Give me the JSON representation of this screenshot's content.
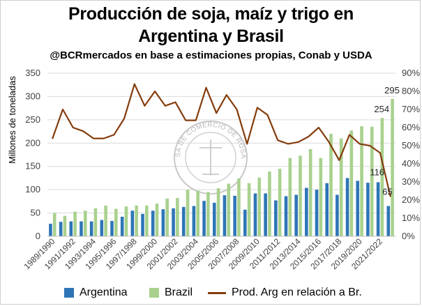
{
  "chart_data": {
    "type": "bar",
    "title": "Producción de soja, maíz y trigo en",
    "title_line2": "Argentina y Brasil",
    "subtitle": "@BCRmercados en base a estimaciones propias, Conab y USDA",
    "ylabel": "Millones de toneladas",
    "ylim": [
      0,
      350
    ],
    "y2lim": [
      0,
      0.9
    ],
    "yticks": [
      "0",
      "50",
      "100",
      "150",
      "200",
      "250",
      "300",
      "350"
    ],
    "y2ticks": [
      "0%",
      "10%",
      "20%",
      "30%",
      "40%",
      "50%",
      "60%",
      "70%",
      "80%",
      "90%"
    ],
    "grid": true,
    "legend_position": "bottom",
    "categories": [
      "1989/1990",
      "1990/1991",
      "1991/1992",
      "1992/1993",
      "1993/1994",
      "1994/1995",
      "1995/1996",
      "1996/1997",
      "1997/1998",
      "1998/1999",
      "1999/2000",
      "2000/2001",
      "2001/2002",
      "2002/2003",
      "2003/2004",
      "2004/2005",
      "2005/2006",
      "2006/2007",
      "2007/2008",
      "2008/2009",
      "2009/2010",
      "2010/2011",
      "2011/2012",
      "2012/2013",
      "2013/2014",
      "2014/2015",
      "2015/2016",
      "2016/2017",
      "2017/2018",
      "2018/2019",
      "2019/2020",
      "2020/2021",
      "2021/2022",
      "2022/2023"
    ],
    "xtick_labels": [
      "1989/1990",
      "",
      "1991/1992",
      "",
      "1993/1994",
      "",
      "1995/1996",
      "",
      "1997/1998",
      "",
      "1999/2000",
      "",
      "2001/2002",
      "",
      "2003/2004",
      "",
      "2005/2006",
      "",
      "2007/2008",
      "",
      "2009/2010",
      "",
      "2011/2012",
      "",
      "2013/2014",
      "",
      "2015/2016",
      "",
      "2017/2018",
      "",
      "2019/2020",
      "",
      "2021/2022",
      ""
    ],
    "series": [
      {
        "name": "Argentina",
        "type": "bar",
        "color": "#2e75b6",
        "values": [
          27,
          31,
          32,
          32,
          32,
          35,
          33,
          42,
          55,
          48,
          55,
          58,
          60,
          63,
          65,
          76,
          72,
          88,
          87,
          57,
          92,
          92,
          77,
          86,
          89,
          104,
          100,
          114,
          89,
          125,
          119,
          115,
          116,
          65
        ]
      },
      {
        "name": "Brazil",
        "type": "bar",
        "color": "#a9d18e",
        "values": [
          50,
          44,
          53,
          55,
          60,
          66,
          59,
          64,
          66,
          66,
          70,
          81,
          82,
          100,
          98,
          95,
          103,
          113,
          124,
          114,
          126,
          139,
          145,
          168,
          173,
          187,
          168,
          220,
          210,
          227,
          236,
          235,
          254,
          295
        ]
      },
      {
        "name": "Prod. Arg en relación a Br.",
        "type": "line",
        "axis": "right",
        "color": "#843c0c",
        "values": [
          0.54,
          0.7,
          0.6,
          0.58,
          0.54,
          0.54,
          0.56,
          0.65,
          0.84,
          0.72,
          0.8,
          0.72,
          0.74,
          0.64,
          0.64,
          0.82,
          0.68,
          0.78,
          0.7,
          0.51,
          0.71,
          0.67,
          0.53,
          0.51,
          0.52,
          0.55,
          0.6,
          0.52,
          0.42,
          0.56,
          0.51,
          0.5,
          0.46,
          0.22
        ]
      }
    ],
    "data_labels": [
      {
        "series": "Brazil",
        "category": "2021/2022",
        "text": "254"
      },
      {
        "series": "Brazil",
        "category": "2022/2023",
        "text": "295"
      },
      {
        "series": "Argentina",
        "category": "2021/2022",
        "text": "116"
      },
      {
        "series": "Argentina",
        "category": "2022/2023",
        "text": "65"
      }
    ],
    "watermark_text": "BOLSA DE COMERCIO DE ROSARIO"
  }
}
